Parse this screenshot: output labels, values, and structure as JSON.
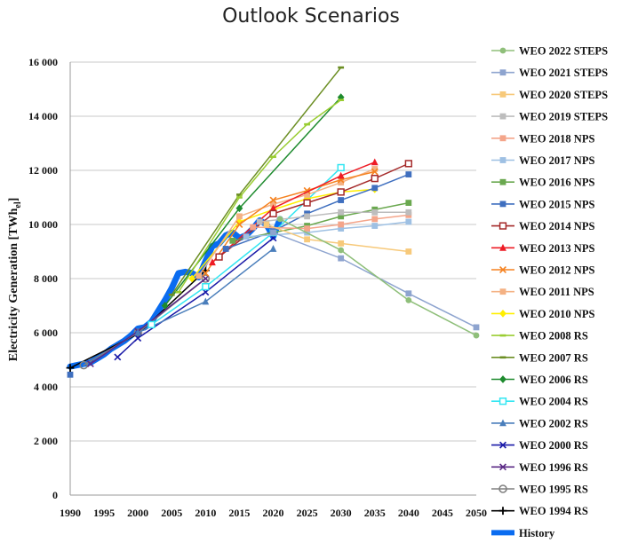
{
  "chart_data": {
    "type": "line",
    "title": "Outlook Scenarios",
    "ylabel": "Electricity Generation [TWh",
    "ylabel_sub": "el",
    "ylabel_close": "]",
    "xlim": [
      1990,
      2050
    ],
    "ylim": [
      0,
      16000
    ],
    "xticks": [
      1990,
      1995,
      2000,
      2005,
      2010,
      2015,
      2020,
      2025,
      2030,
      2035,
      2040,
      2045,
      2050
    ],
    "yticks": [
      0,
      2000,
      4000,
      6000,
      8000,
      10000,
      12000,
      14000,
      16000
    ],
    "ytick_labels": [
      "0",
      "2 000",
      "4 000",
      "6 000",
      "8 000",
      "10 000",
      "12 000",
      "14 000",
      "16 000"
    ],
    "grid": "horizontal",
    "legend_position": "right",
    "series": [
      {
        "name": "WEO 2022 STEPS",
        "color": "#8fbf7a",
        "marker": "circle",
        "x": [
          2021,
          2030,
          2040,
          2050
        ],
        "y": [
          10200,
          9050,
          7200,
          5900
        ]
      },
      {
        "name": "WEO 2021 STEPS",
        "color": "#8ea4cf",
        "marker": "square",
        "x": [
          2020,
          2030,
          2040,
          2050
        ],
        "y": [
          9700,
          8750,
          7450,
          6200
        ]
      },
      {
        "name": "WEO 2020 STEPS",
        "color": "#f7c97a",
        "marker": "square",
        "x": [
          2019,
          2025,
          2030,
          2040
        ],
        "y": [
          10000,
          9450,
          9300,
          9000
        ]
      },
      {
        "name": "WEO 2019 STEPS",
        "color": "#bdbdbd",
        "marker": "square",
        "x": [
          2018,
          2025,
          2030,
          2035,
          2040
        ],
        "y": [
          10100,
          10300,
          10450,
          10450,
          10450
        ]
      },
      {
        "name": "WEO 2018 NPS",
        "color": "#f4a58a",
        "marker": "square",
        "x": [
          2017,
          2025,
          2030,
          2035,
          2040
        ],
        "y": [
          9900,
          9850,
          10000,
          10200,
          10350
        ]
      },
      {
        "name": "WEO 2017 NPS",
        "color": "#9ec0e3",
        "marker": "square",
        "x": [
          2016,
          2025,
          2030,
          2035,
          2040
        ],
        "y": [
          9550,
          9700,
          9850,
          9950,
          10100
        ]
      },
      {
        "name": "WEO 2016 NPS",
        "color": "#6aa84f",
        "marker": "square",
        "x": [
          2014,
          2025,
          2030,
          2035,
          2040
        ],
        "y": [
          9400,
          9950,
          10300,
          10550,
          10800
        ]
      },
      {
        "name": "WEO 2015 NPS",
        "color": "#3f6fbf",
        "marker": "square",
        "x": [
          2013,
          2020,
          2025,
          2030,
          2035,
          2040
        ],
        "y": [
          9100,
          9750,
          10400,
          10900,
          11350,
          11850
        ]
      },
      {
        "name": "WEO 2014 NPS",
        "color": "#a52a2a",
        "marker": "square-open",
        "x": [
          2012,
          2020,
          2025,
          2030,
          2035,
          2040
        ],
        "y": [
          8800,
          10400,
          10800,
          11200,
          11700,
          12250
        ]
      },
      {
        "name": "WEO 2013 NPS",
        "color": "#ee1c25",
        "marker": "triangle",
        "x": [
          2011,
          2020,
          2030,
          2035
        ],
        "y": [
          8600,
          10600,
          11800,
          12300
        ]
      },
      {
        "name": "WEO 2012 NPS",
        "color": "#f58220",
        "marker": "x",
        "x": [
          2010,
          2015,
          2020,
          2025,
          2030,
          2035
        ],
        "y": [
          8200,
          10000,
          10900,
          11250,
          11650,
          11950
        ]
      },
      {
        "name": "WEO 2011 NPS",
        "color": "#f4b183",
        "marker": "square",
        "x": [
          2009,
          2015,
          2020,
          2025,
          2030,
          2035
        ],
        "y": [
          8100,
          10300,
          10750,
          11100,
          11550,
          12050
        ]
      },
      {
        "name": "WEO 2010 NPS",
        "color": "#ffef00",
        "marker": "diamond",
        "x": [
          2008,
          2015,
          2020,
          2025,
          2030,
          2035
        ],
        "y": [
          8000,
          10100,
          10550,
          10950,
          11200,
          11300
        ]
      },
      {
        "name": "WEO 2008 RS",
        "color": "#9acd32",
        "marker": "dash",
        "x": [
          2006,
          2015,
          2020,
          2025,
          2030
        ],
        "y": [
          7500,
          11000,
          12500,
          13700,
          14600
        ]
      },
      {
        "name": "WEO 2007 RS",
        "color": "#6b8e23",
        "marker": "dash",
        "x": [
          2005,
          2015,
          2030
        ],
        "y": [
          7400,
          11100,
          15800
        ]
      },
      {
        "name": "WEO 2006 RS",
        "color": "#1e8b2e",
        "marker": "diamond",
        "x": [
          2004,
          2015,
          2030
        ],
        "y": [
          7000,
          10600,
          14700
        ]
      },
      {
        "name": "WEO 2004 RS",
        "color": "#33e6f2",
        "marker": "square-open",
        "x": [
          2002,
          2010,
          2020,
          2030
        ],
        "y": [
          6300,
          7700,
          9700,
          12100
        ]
      },
      {
        "name": "WEO 2002 RS",
        "color": "#4a7ebb",
        "marker": "triangle",
        "x": [
          2000,
          2010,
          2020
        ],
        "y": [
          6000,
          7150,
          9100
        ]
      },
      {
        "name": "WEO 2000 RS",
        "color": "#1a1aa8",
        "marker": "x",
        "x": [
          1997,
          2000,
          2010,
          2020
        ],
        "y": [
          5100,
          5800,
          7500,
          9500
        ]
      },
      {
        "name": "WEO 1996 RS",
        "color": "#5b2a86",
        "marker": "x",
        "x": [
          1993,
          2000,
          2010
        ],
        "y": [
          4850,
          6050,
          8000
        ]
      },
      {
        "name": "WEO 1995 RS",
        "color": "#808080",
        "marker": "circle-open",
        "x": [
          1992,
          2000,
          2010
        ],
        "y": [
          4800,
          6000,
          8000
        ]
      },
      {
        "name": "WEO 1994 RS",
        "color": "#000000",
        "marker": "plus",
        "x": [
          1990,
          2000,
          2010
        ],
        "y": [
          4700,
          5950,
          8300
        ]
      },
      {
        "name": "History",
        "color": "#0a6cf0",
        "marker": "none",
        "width": 7,
        "x": [
          1990,
          1991,
          1992,
          1993,
          1994,
          1995,
          1996,
          1997,
          1998,
          1999,
          2000,
          2001,
          2002,
          2003,
          2004,
          2005,
          2006,
          2007,
          2008,
          2009,
          2010,
          2011,
          2012,
          2013,
          2014,
          2015,
          2016,
          2017,
          2018,
          2019,
          2020,
          2021
        ],
        "y": [
          4750,
          4800,
          4850,
          4900,
          5050,
          5200,
          5400,
          5550,
          5700,
          5900,
          6150,
          6200,
          6400,
          6800,
          7200,
          7650,
          8200,
          8250,
          8200,
          8050,
          8650,
          9200,
          9300,
          9600,
          9700,
          9500,
          9600,
          9850,
          10150,
          10000,
          9550,
          10200
        ]
      },
      {
        "name": "",
        "color": "#3f6fbf",
        "marker": "square",
        "is_extra": true,
        "x": [
          1990
        ],
        "y": [
          4450
        ]
      }
    ]
  }
}
